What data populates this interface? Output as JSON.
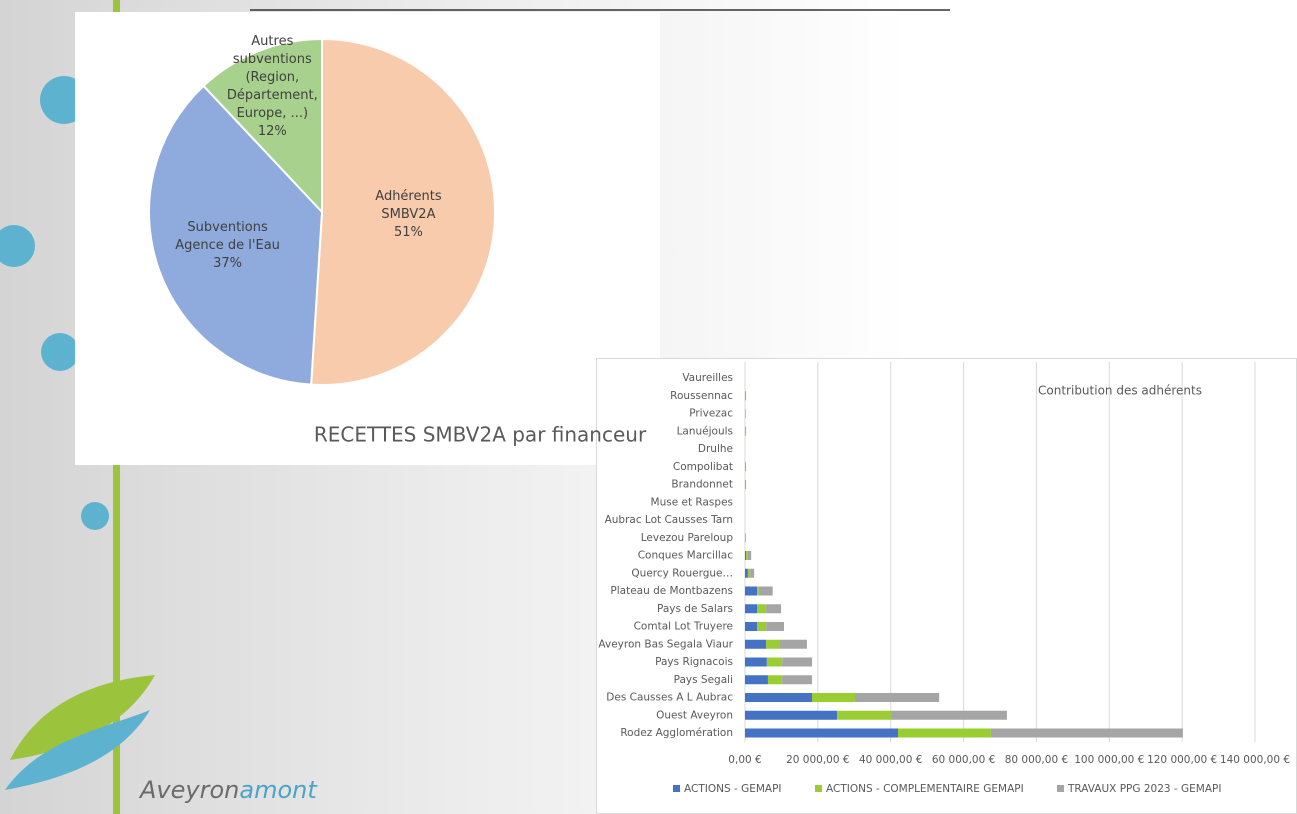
{
  "chart_data": [
    {
      "type": "pie",
      "title": "RECETTES SMBV2A par financeur",
      "categories": [
        "Adhérents SMBV2A",
        "Subventions Agence de l'Eau",
        "Autres subventions (Region, Département, Europe, ...)"
      ],
      "values": [
        51,
        37,
        12
      ],
      "value_labels": [
        "51%",
        "37%",
        "12%"
      ],
      "colors": [
        "#f8cbad",
        "#8faadc",
        "#a9d18e"
      ]
    },
    {
      "type": "stacked-barh",
      "title": "Contribution des adhérents",
      "categories": [
        "Rodez Agglomération",
        "Ouest Aveyron",
        "Des Causses A L Aubrac",
        "Pays Segali",
        "Pays Rignacois",
        "Aveyron Bas Segala Viaur",
        "Comtal Lot Truyere",
        "Pays de Salars",
        "Plateau de Montbazens",
        "Quercy Rouergue…",
        "Conques Marcillac",
        "Levezou Pareloup",
        "Aubrac Lot Causses Tarn",
        "Muse et Raspes",
        "Brandonnet",
        "Compolibat",
        "Drulhe",
        "Lanuéjouls",
        "Privezac",
        "Roussennac",
        "Vaureilles"
      ],
      "series": [
        {
          "name": "ACTIONS - GEMAPI",
          "color": "#4472c4",
          "values": [
            42000,
            25300,
            18400,
            6300,
            6000,
            5800,
            3300,
            3300,
            3300,
            800,
            300,
            100,
            0,
            0,
            0,
            0,
            0,
            0,
            0,
            0,
            0
          ]
        },
        {
          "name": "ACTIONS - COMPLEMENTAIRE GEMAPI",
          "color": "#9acd32",
          "values": [
            25500,
            14800,
            11800,
            3900,
            4200,
            3800,
            2500,
            2500,
            500,
            600,
            300,
            100,
            0,
            0,
            300,
            300,
            0,
            300,
            200,
            300,
            0
          ]
        },
        {
          "name": "TRAVAUX PPG 2023 - GEMAPI",
          "color": "#a5a5a5",
          "values": [
            52700,
            31800,
            23100,
            8200,
            8200,
            7400,
            4900,
            4100,
            3800,
            1100,
            1100,
            0,
            0,
            0,
            0,
            0,
            0,
            0,
            0,
            0,
            0
          ]
        }
      ],
      "xlim": [
        0,
        140000
      ],
      "xticks": [
        {
          "value": 0,
          "label": "0,00 €"
        },
        {
          "value": 20000,
          "label": "20 000,00 €"
        },
        {
          "value": 40000,
          "label": "40 000,00 €"
        },
        {
          "value": 60000,
          "label": "60 000,00 €"
        },
        {
          "value": 80000,
          "label": "80 000,00 €"
        },
        {
          "value": 100000,
          "label": "100 000,00 €"
        },
        {
          "value": 120000,
          "label": "120 000,00 €"
        },
        {
          "value": 140000,
          "label": "140 000,00 €"
        }
      ],
      "grid": true,
      "legend": "bottom"
    }
  ],
  "logo": {
    "part1": "Aveyron",
    "part2": "amont"
  }
}
